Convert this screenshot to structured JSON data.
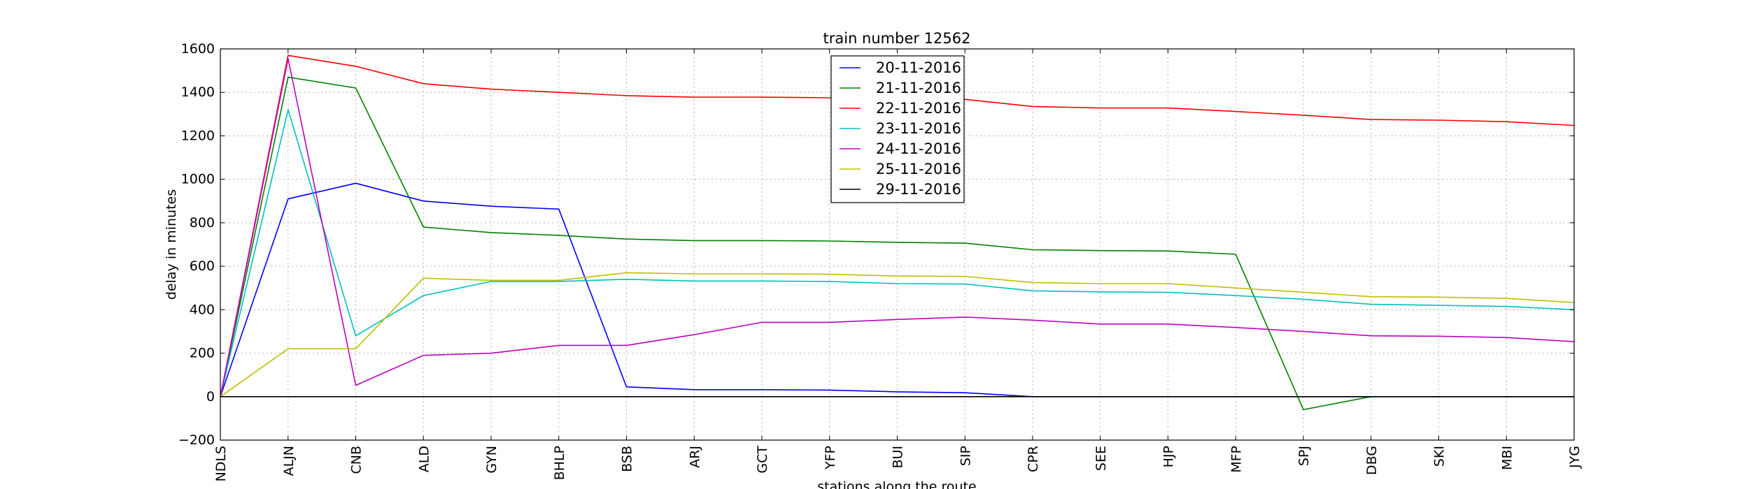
{
  "chart_data": {
    "type": "line",
    "title": "train number 12562",
    "xlabel": "stations along the route",
    "ylabel": "delay in minutes",
    "ylim": [
      -200,
      1600
    ],
    "yticks": [
      -200,
      0,
      200,
      400,
      600,
      800,
      1000,
      1200,
      1400,
      1600
    ],
    "ytick_labels": [
      "−200",
      "0",
      "200",
      "400",
      "600",
      "800",
      "1000",
      "1200",
      "1400",
      "1600"
    ],
    "grid": true,
    "legend_position": "top-center",
    "categories": [
      "NDLS",
      "ALJN",
      "CNB",
      "ALD",
      "GYN",
      "BHLP",
      "BSB",
      "ARJ",
      "GCT",
      "YFP",
      "BUI",
      "SIP",
      "CPR",
      "SEE",
      "HJP",
      "MFP",
      "SPJ",
      "DBG",
      "SKI",
      "MBI",
      "JYG"
    ],
    "series": [
      {
        "name": "20-11-2016",
        "color": "#0000ff",
        "values": [
          0,
          910,
          982,
          900,
          876,
          863,
          45,
          32,
          32,
          30,
          22,
          18,
          0,
          0,
          0,
          0,
          0,
          0,
          0,
          0,
          0
        ]
      },
      {
        "name": "21-11-2016",
        "color": "#008000",
        "values": [
          0,
          1470,
          1420,
          780,
          755,
          742,
          725,
          718,
          718,
          716,
          710,
          706,
          676,
          672,
          670,
          655,
          -60,
          0,
          0,
          0,
          0
        ]
      },
      {
        "name": "22-11-2016",
        "color": "#ff0000",
        "values": [
          0,
          1570,
          1520,
          1440,
          1415,
          1400,
          1385,
          1378,
          1378,
          1375,
          1373,
          1368,
          1335,
          1328,
          1328,
          1312,
          1295,
          1275,
          1272,
          1265,
          1248
        ]
      },
      {
        "name": "23-11-2016",
        "color": "#00bfbf",
        "values": [
          0,
          1320,
          280,
          465,
          530,
          530,
          540,
          532,
          532,
          530,
          520,
          518,
          487,
          482,
          480,
          465,
          448,
          425,
          420,
          415,
          400
        ]
      },
      {
        "name": "24-11-2016",
        "color": "#bf00bf",
        "values": [
          0,
          1555,
          52,
          190,
          200,
          236,
          236,
          285,
          342,
          342,
          355,
          366,
          352,
          334,
          334,
          318,
          300,
          280,
          278,
          272,
          253
        ]
      },
      {
        "name": "25-11-2016",
        "color": "#bfbf00",
        "values": [
          0,
          220,
          220,
          545,
          535,
          535,
          570,
          565,
          565,
          563,
          555,
          553,
          525,
          520,
          520,
          500,
          480,
          460,
          458,
          452,
          433
        ]
      },
      {
        "name": "29-11-2016",
        "color": "#000000",
        "values": [
          0,
          0,
          0,
          0,
          0,
          0,
          0,
          0,
          0,
          0,
          0,
          0,
          0,
          0,
          0,
          0,
          0,
          0,
          0,
          0,
          0
        ]
      }
    ]
  }
}
